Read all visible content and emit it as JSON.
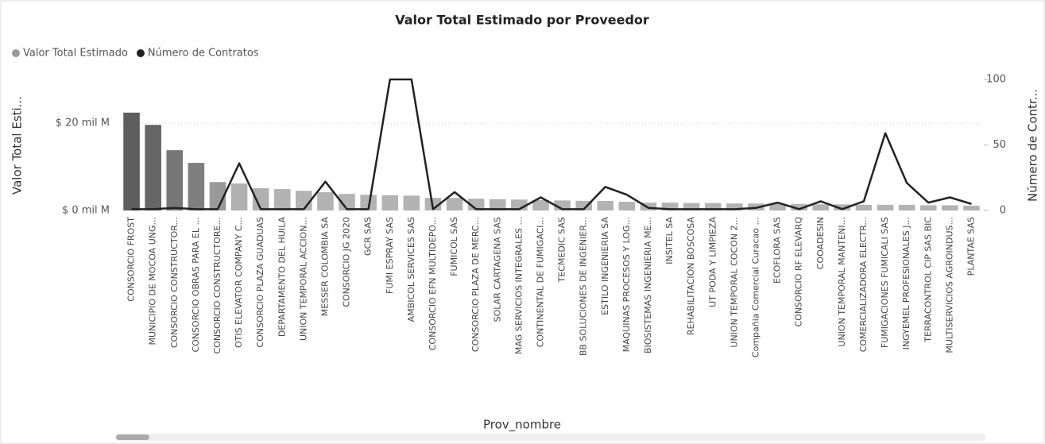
{
  "chart_data": {
    "type": "combo",
    "title": "Valor Total Estimado por Proveedor",
    "x_label": "Prov_nombre",
    "y_label": "Valor Total Esti...",
    "y2_label": "Número de Contr...",
    "categories": [
      "CONSORCIO FROST",
      "MUNICIPIO DE MOCOA UNG...",
      "CONSORCIO CONSTRUCTOR...",
      "CONSORCIO OBRAS PARA EL ...",
      "CONSORCIO CONSTRUCTORE...",
      "OTIS ELEVATOR COMPANY C...",
      "CONSORCIO PLAZA GUADUAS",
      "DEPARTAMENTO DEL HUILA",
      "UNION TEMPORAL ACCION...",
      "MESSER COLOMBIA SA",
      "CONSORCIO JG 2020",
      "GCR SAS",
      "FUMI ESPRAY SAS",
      "AMBICOL SERVICES SAS",
      "CONSORCIO EFN MULTIDEPO...",
      "FUMICOL SAS",
      "CONSORCIO PLAZA DE MERC...",
      "SOLAR CARTAGENA SAS",
      "MAG SERVICIOS INTEGRALES ...",
      "CONTINENTAL DE FUMIGACI...",
      "TECMEDIC SAS",
      "BB SOLUCIONES DE INGENIER...",
      "ESTILO INGENIERIA SA",
      "MAQUINAS PROCESOS Y LOG...",
      "BIOSISTEMAS INGENIERIA ME...",
      "INSITEL SA",
      "REHABILITACION BOSCOSA",
      "UT PODA Y LIMPIEZA",
      "UNION TEMPORAL COCON 2...",
      "Compañia Comercial Curacao ...",
      "ECOFLORA SAS",
      "CONSORCIO RF ELEVARQ",
      "COOADESIN",
      "UNION TEMPORAL MANTENI...",
      "COMERCIALIZADORA ELECTR...",
      "FUMIGACIONES FUMICALI SAS",
      "INGYEMEL PROFESIONALES J...",
      "TERRACONTROL CIP SAS BIC",
      "MULTISERVICIOS AGROINDUS...",
      "PLANTAE SAS"
    ],
    "series": [
      {
        "name": "Valor Total Estimado",
        "type": "bar",
        "color": "#999999",
        "colors": [
          "#5e5e5e",
          "#666666",
          "#777777",
          "#7f7f7f",
          "#999999",
          "#b0b0b0",
          "#b0b0b0",
          "#b3b3b3",
          "#b3b3b3",
          "#b3b3b3",
          "#b3b3b3",
          "#b3b3b3",
          "#b3b3b3",
          "#b3b3b3",
          "#b3b3b3",
          "#b3b3b3",
          "#b3b3b3",
          "#b3b3b3",
          "#b3b3b3",
          "#b3b3b3",
          "#b3b3b3",
          "#b3b3b3",
          "#b3b3b3",
          "#b3b3b3",
          "#b3b3b3",
          "#b3b3b3",
          "#b3b3b3",
          "#b3b3b3",
          "#b3b3b3",
          "#b3b3b3",
          "#b3b3b3",
          "#b3b3b3",
          "#b3b3b3",
          "#b3b3b3",
          "#b3b3b3",
          "#b3b3b3",
          "#b3b3b3",
          "#b3b3b3",
          "#b3b3b3",
          "#b3b3b3"
        ],
        "values": [
          22.4,
          19.6,
          13.8,
          10.9,
          6.5,
          6.2,
          5.1,
          4.9,
          4.5,
          4.2,
          3.8,
          3.6,
          3.5,
          3.4,
          2.9,
          2.9,
          2.7,
          2.6,
          2.5,
          2.4,
          2.3,
          2.2,
          2.2,
          2.0,
          1.8,
          1.8,
          1.7,
          1.7,
          1.6,
          1.6,
          1.5,
          1.5,
          1.4,
          1.4,
          1.3,
          1.3,
          1.3,
          1.2,
          1.2,
          1.1
        ]
      },
      {
        "name": "Número de Contratos",
        "type": "line",
        "axis": "y2",
        "color": "#222222",
        "values": [
          1,
          1,
          2,
          1,
          1,
          36,
          1,
          1,
          1,
          22,
          1,
          1,
          100,
          100,
          1,
          14,
          1,
          1,
          1,
          10,
          1,
          1,
          18,
          12,
          2,
          1,
          1,
          1,
          1,
          2,
          6,
          1,
          7,
          1,
          7,
          59,
          21,
          6,
          10,
          5
        ]
      }
    ],
    "ylim": [
      0,
      30
    ],
    "yticks": [
      {
        "value": 0,
        "label": "$ 0 mil M"
      },
      {
        "value": 20,
        "label": "$ 20 mil M"
      }
    ],
    "y2lim": [
      0,
      100
    ],
    "y2ticks": [
      0,
      50,
      100
    ],
    "grid": true,
    "legend": "top-left"
  }
}
